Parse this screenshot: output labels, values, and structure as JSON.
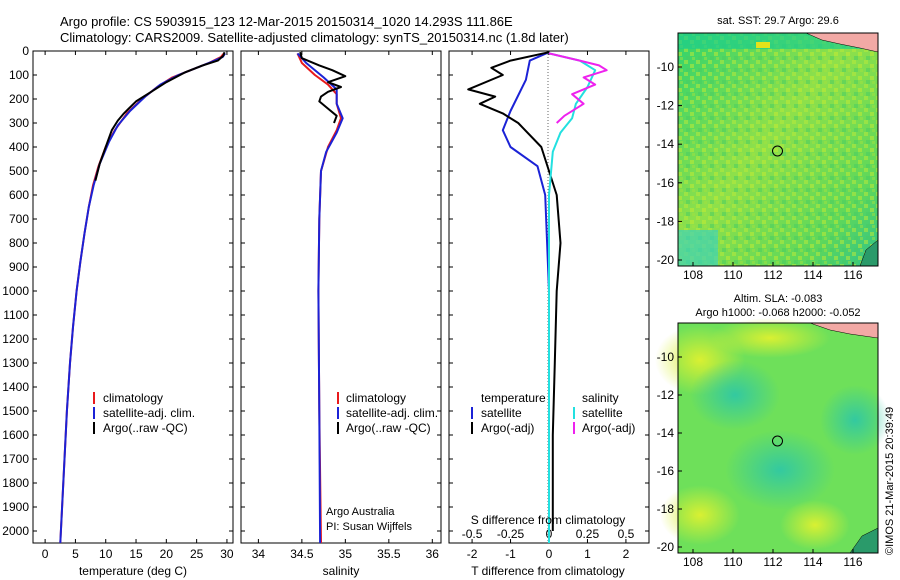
{
  "header": {
    "line1": "Argo profile: CS 5903915_123 12-Mar-2015 20150314_1020 14.293S 111.86E",
    "line2": "Climatology: CARS2009. Satellite-adjusted climatology: synTS_20150314.nc (1.8d later)"
  },
  "colors": {
    "clim": "#e8191c",
    "sat": "#1b22d6",
    "argo": "#000000",
    "sal_sat": "#22e0e0",
    "sal_argo": "#ee22ee"
  },
  "chart_data": [
    {
      "type": "line",
      "id": "temperature",
      "xlabel": "temperature (deg C)",
      "xlim": [
        -2,
        31
      ],
      "ylim": [
        2050,
        0
      ],
      "xticks": [
        0,
        5,
        10,
        15,
        20,
        25,
        30
      ],
      "yticks": [
        0,
        100,
        200,
        300,
        400,
        500,
        600,
        700,
        800,
        900,
        1000,
        1100,
        1200,
        1300,
        1400,
        1500,
        1600,
        1700,
        1800,
        1900,
        2000
      ],
      "legend": [
        "climatology",
        "satellite-adj. clim.",
        "Argo(..raw -QC)"
      ],
      "series": [
        {
          "name": "climatology",
          "color": "clim",
          "points": [
            [
              29.5,
              10
            ],
            [
              29,
              25
            ],
            [
              27,
              50
            ],
            [
              24,
              80
            ],
            [
              21,
              110
            ],
            [
              18.5,
              150
            ],
            [
              16,
              200
            ],
            [
              13.5,
              260
            ],
            [
              11.5,
              330
            ],
            [
              10,
              400
            ],
            [
              8.8,
              480
            ],
            [
              7.9,
              560
            ],
            [
              7.2,
              650
            ],
            [
              6.5,
              760
            ],
            [
              5.8,
              880
            ],
            [
              5.2,
              1000
            ],
            [
              4.6,
              1150
            ],
            [
              4.1,
              1300
            ],
            [
              3.6,
              1500
            ],
            [
              3.2,
              1700
            ],
            [
              2.8,
              1900
            ],
            [
              2.5,
              2050
            ]
          ]
        },
        {
          "name": "satellite-adj. clim.",
          "color": "sat",
          "points": [
            [
              29.7,
              10
            ],
            [
              29.3,
              25
            ],
            [
              27.5,
              45
            ],
            [
              25,
              70
            ],
            [
              22,
              100
            ],
            [
              19,
              140
            ],
            [
              16.5,
              190
            ],
            [
              14,
              250
            ],
            [
              12,
              310
            ],
            [
              10.5,
              380
            ],
            [
              9,
              470
            ],
            [
              8,
              560
            ],
            [
              7.2,
              650
            ],
            [
              6.5,
              760
            ],
            [
              5.8,
              880
            ],
            [
              5.2,
              1000
            ],
            [
              4.6,
              1150
            ],
            [
              4.1,
              1300
            ],
            [
              3.6,
              1500
            ],
            [
              3.2,
              1700
            ],
            [
              2.8,
              1900
            ],
            [
              2.5,
              2050
            ]
          ]
        },
        {
          "name": "Argo(..raw -QC)",
          "color": "argo",
          "points": [
            [
              29.6,
              5
            ],
            [
              29.4,
              20
            ],
            [
              28.5,
              40
            ],
            [
              26,
              60
            ],
            [
              23,
              90
            ],
            [
              20,
              130
            ],
            [
              17.5,
              170
            ],
            [
              15,
              210
            ],
            [
              13,
              260
            ],
            [
              12,
              290
            ],
            [
              11,
              330
            ],
            [
              10,
              400
            ],
            [
              9,
              470
            ],
            [
              8.3,
              540
            ]
          ]
        }
      ]
    },
    {
      "type": "line",
      "id": "salinity",
      "xlabel": "salinity",
      "xlim": [
        33.8,
        36.1
      ],
      "ylim": [
        2050,
        0
      ],
      "xticks": [
        34,
        34.5,
        35,
        35.5,
        36
      ],
      "legend": [
        "climatology",
        "satellite-adj. clim.",
        "Argo(..raw -QC)"
      ],
      "annotation": [
        "Argo Australia",
        "PI: Susan Wijffels"
      ],
      "series": [
        {
          "name": "climatology",
          "color": "clim",
          "points": [
            [
              34.45,
              10
            ],
            [
              34.5,
              50
            ],
            [
              34.65,
              100
            ],
            [
              34.8,
              140
            ],
            [
              34.9,
              180
            ],
            [
              34.9,
              220
            ],
            [
              34.95,
              280
            ],
            [
              34.9,
              330
            ],
            [
              34.8,
              400
            ],
            [
              34.72,
              500
            ],
            [
              34.7,
              700
            ],
            [
              34.69,
              1000
            ],
            [
              34.7,
              1500
            ],
            [
              34.72,
              2050
            ]
          ]
        },
        {
          "name": "satellite-adj. clim.",
          "color": "sat",
          "points": [
            [
              34.45,
              10
            ],
            [
              34.55,
              50
            ],
            [
              34.75,
              110
            ],
            [
              34.9,
              160
            ],
            [
              34.9,
              220
            ],
            [
              34.97,
              280
            ],
            [
              34.9,
              340
            ],
            [
              34.78,
              420
            ],
            [
              34.72,
              500
            ],
            [
              34.7,
              700
            ],
            [
              34.69,
              1000
            ],
            [
              34.7,
              1500
            ],
            [
              34.71,
              2050
            ]
          ]
        },
        {
          "name": "Argo(..raw -QC)",
          "color": "argo",
          "points": [
            [
              34.48,
              5
            ],
            [
              34.5,
              30
            ],
            [
              34.7,
              60
            ],
            [
              34.85,
              80
            ],
            [
              35.0,
              105
            ],
            [
              34.8,
              130
            ],
            [
              34.95,
              150
            ],
            [
              34.8,
              170
            ],
            [
              34.72,
              190
            ],
            [
              34.7,
              210
            ],
            [
              34.8,
              240
            ],
            [
              34.9,
              270
            ],
            [
              34.87,
              300
            ]
          ]
        }
      ]
    },
    {
      "type": "line",
      "id": "differences",
      "xlabel": "T difference from climatology",
      "xlabel2": "S difference from climatology",
      "xlim": [
        -2.6,
        2.6
      ],
      "ylim": [
        2050,
        0
      ],
      "xticks": [
        -2,
        -1,
        0,
        1,
        2
      ],
      "xtick_labels_top": [
        "-0.5",
        "-0.25",
        "0",
        "0.25",
        "0.5"
      ],
      "legend_t": [
        "temperature",
        "satellite",
        "Argo(-adj)"
      ],
      "legend_s": [
        "salinity",
        "satellite",
        "Argo(-adj)"
      ],
      "series": [
        {
          "name": "T satellite",
          "color": "sat",
          "points": [
            [
              0,
              5
            ],
            [
              -0.5,
              40
            ],
            [
              -0.6,
              120
            ],
            [
              -1.0,
              250
            ],
            [
              -1.2,
              330
            ],
            [
              -1.0,
              400
            ],
            [
              -0.3,
              480
            ],
            [
              -0.1,
              600
            ],
            [
              0,
              1000
            ],
            [
              0,
              2050
            ]
          ]
        },
        {
          "name": "T Argo(-adj)",
          "color": "argo",
          "points": [
            [
              0,
              5
            ],
            [
              -1,
              40
            ],
            [
              -1.5,
              70
            ],
            [
              -1.2,
              100
            ],
            [
              -2.1,
              160
            ],
            [
              -1.4,
              190
            ],
            [
              -1.8,
              220
            ],
            [
              -1.2,
              260
            ],
            [
              -0.8,
              300
            ],
            [
              -0.2,
              400
            ],
            [
              0.2,
              600
            ],
            [
              0.3,
              800
            ],
            [
              0.2,
              1000
            ],
            [
              0.15,
              1300
            ],
            [
              0.1,
              1600
            ],
            [
              0.1,
              2000
            ]
          ]
        },
        {
          "name": "S satellite",
          "color": "sal_sat",
          "points": [
            [
              0,
              10
            ],
            [
              0.8,
              40
            ],
            [
              1.2,
              80
            ],
            [
              1.0,
              150
            ],
            [
              0.7,
              220
            ],
            [
              0.6,
              280
            ],
            [
              0.3,
              340
            ],
            [
              0.1,
              420
            ],
            [
              0,
              600
            ],
            [
              0,
              2050
            ]
          ]
        },
        {
          "name": "S Argo(-adj)",
          "color": "sal_argo",
          "points": [
            [
              0,
              10
            ],
            [
              0.8,
              40
            ],
            [
              1.3,
              60
            ],
            [
              1.5,
              80
            ],
            [
              0.9,
              110
            ],
            [
              1.2,
              140
            ],
            [
              0.6,
              180
            ],
            [
              0.9,
              220
            ],
            [
              0.4,
              270
            ],
            [
              0.2,
              300
            ]
          ]
        }
      ]
    }
  ],
  "maps": {
    "sst": {
      "title": "sat. SST: 29.7  Argo: 29.6",
      "xticks": [
        "108",
        "110",
        "112",
        "114",
        "116"
      ],
      "yticks": [
        "-10",
        "-12",
        "-14",
        "-16",
        "-18",
        "-20"
      ]
    },
    "sla": {
      "title_line1": "Altim. SLA: -0.083",
      "title_line2": "Argo h1000: -0.068  h2000: -0.052",
      "xticks": [
        "108",
        "110",
        "112",
        "114",
        "116"
      ],
      "yticks": [
        "-10",
        "-12",
        "-14",
        "-16",
        "-18",
        "-20"
      ]
    }
  },
  "credit": "©IMOS 21-Mar-2015 20:39:49"
}
